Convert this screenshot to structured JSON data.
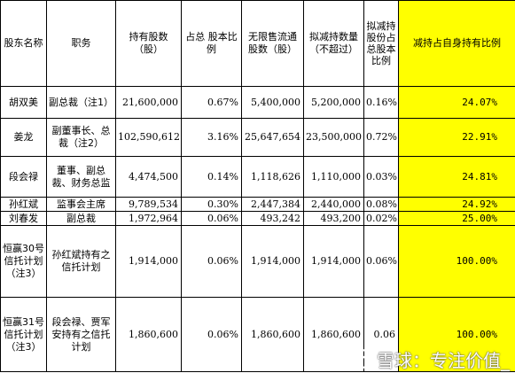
{
  "headers": {
    "name": "股东名称",
    "position": "职务",
    "shares": "持有股数（股）",
    "ratio": "占总 股本比例",
    "unrestricted": "无限售流通股数（股）",
    "planned": "拟减持数量（不超过）",
    "planned_ratio": "拟减持股份占总股本比例",
    "self_ratio": "减持占自身持有比例"
  },
  "rows": [
    {
      "name": "胡双美",
      "position": "副总裁（注1）",
      "shares": "21,600,000",
      "ratio": "0.67%",
      "unrestricted": "5,400,000",
      "planned": "5,200,000",
      "planned_ratio": "0.16%",
      "self_ratio": "24.07%"
    },
    {
      "name": "姜龙",
      "position": "副董事长、总裁（注2）",
      "shares": "102,590,612",
      "ratio": "3.16%",
      "unrestricted": "25,647,654",
      "planned": "23,500,000",
      "planned_ratio": "0.72%",
      "self_ratio": "22.91%"
    },
    {
      "name": "段会禄",
      "position": "董事、副总裁、财务总监",
      "shares": "4,474,500",
      "ratio": "0.14%",
      "unrestricted": "1,118,626",
      "planned": "1,110,000",
      "planned_ratio": "0.03%",
      "self_ratio": "24.81%"
    },
    {
      "name": "孙红斌",
      "position": "监事会主席",
      "shares": "9,789,534",
      "ratio": "0.30%",
      "unrestricted": "2,447,384",
      "planned": "2,440,000",
      "planned_ratio": "0.08%",
      "self_ratio": "24.92%"
    },
    {
      "name": "刘春发",
      "position": "副总裁",
      "shares": "1,972,964",
      "ratio": "0.06%",
      "unrestricted": "493,242",
      "planned": "493,200",
      "planned_ratio": "0.02%",
      "self_ratio": "25.00%"
    },
    {
      "name": "恒赢30号信托计划（注3）",
      "position": "孙红斌持有之信托计划",
      "shares": "1,914,000",
      "ratio": "0.06%",
      "unrestricted": "1,914,000",
      "planned": "1,914,000",
      "planned_ratio": "0.06%",
      "self_ratio": "100.00%"
    },
    {
      "name": "恒赢31号信托计划（注3）",
      "position": "段会禄、贾军安持有之信托计划",
      "shares": "1,860,600",
      "ratio": "0.06%",
      "unrestricted": "1,860,600",
      "planned": "1,860,600",
      "planned_ratio": "0.06",
      "self_ratio": "100.00%"
    }
  ],
  "watermark": {
    "text": "雪球：专注价值_",
    "icon": "snowball-logo-icon"
  }
}
